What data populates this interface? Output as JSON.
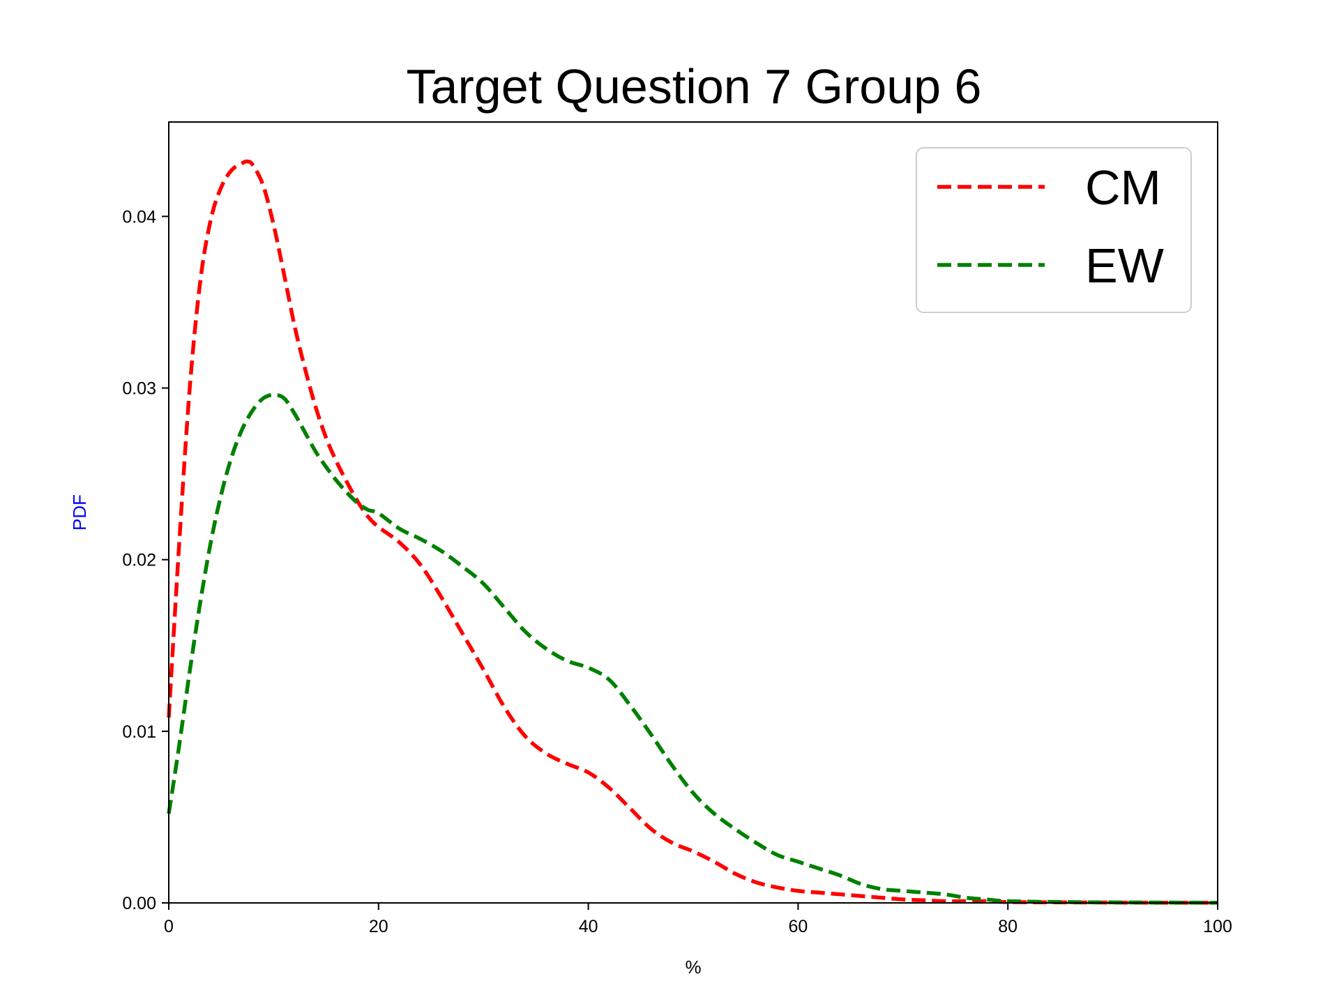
{
  "chart_data": {
    "type": "line",
    "title": "Target Question 7 Group 6",
    "xlabel": "%",
    "ylabel": "PDF",
    "ylabel_color": "#0000ff",
    "xlim": [
      0,
      100
    ],
    "ylim": [
      0,
      0.0455
    ],
    "xticks": [
      0,
      20,
      40,
      60,
      80,
      100
    ],
    "xtick_labels": [
      "0",
      "20",
      "40",
      "60",
      "80",
      "100"
    ],
    "yticks": [
      0,
      0.01,
      0.02,
      0.03,
      0.04
    ],
    "ytick_labels": [
      "0.00",
      "0.01",
      "0.02",
      "0.03",
      "0.04"
    ],
    "grid": false,
    "legend_position": "top-right",
    "series": [
      {
        "name": "CM",
        "color": "#ff0000",
        "line_style": "dashed",
        "x": [
          0,
          1,
          2,
          3,
          4,
          5,
          6,
          7,
          7.5,
          8,
          9,
          10,
          11,
          12,
          13,
          14,
          15,
          16,
          17,
          18,
          19,
          20,
          22,
          24,
          26,
          28,
          30,
          32,
          34,
          36,
          38,
          40,
          42,
          44,
          46,
          48,
          50,
          52,
          54,
          56,
          58,
          60,
          62,
          64,
          66,
          68,
          70,
          72,
          74,
          76,
          78,
          80,
          85,
          90,
          95,
          100
        ],
        "y": [
          0.0108,
          0.021,
          0.03,
          0.0362,
          0.0398,
          0.0417,
          0.0427,
          0.0431,
          0.0432,
          0.043,
          0.0418,
          0.0395,
          0.0366,
          0.0336,
          0.0311,
          0.0289,
          0.0271,
          0.0257,
          0.0245,
          0.0234,
          0.0225,
          0.0219,
          0.021,
          0.0197,
          0.0178,
          0.0157,
          0.0136,
          0.0114,
          0.0097,
          0.0087,
          0.0081,
          0.0076,
          0.0067,
          0.0055,
          0.0043,
          0.0035,
          0.003,
          0.0024,
          0.0017,
          0.0012,
          0.0009,
          0.0007,
          0.0006,
          0.0005,
          0.0004,
          0.0003,
          0.0002,
          0.00015,
          0.0001,
          0.0001,
          0.0001,
          5e-05,
          3e-05,
          2e-05,
          1e-05,
          1e-05
        ]
      },
      {
        "name": "EW",
        "color": "#008000",
        "line_style": "dashed",
        "x": [
          0,
          1,
          2,
          3,
          4,
          5,
          6,
          7,
          8,
          9,
          10,
          11,
          12,
          13,
          14,
          15,
          16,
          17,
          18,
          19,
          20,
          22,
          24,
          26,
          28,
          30,
          32,
          34,
          36,
          38,
          40,
          42,
          44,
          46,
          48,
          50,
          52,
          54,
          56,
          58,
          60,
          62,
          64,
          66,
          68,
          70,
          72,
          74,
          76,
          78,
          80,
          85,
          90,
          95,
          100
        ],
        "y": [
          0.0052,
          0.0092,
          0.0135,
          0.0175,
          0.021,
          0.0238,
          0.026,
          0.0276,
          0.0287,
          0.0294,
          0.0296,
          0.0294,
          0.0285,
          0.0274,
          0.0263,
          0.0254,
          0.0246,
          0.0239,
          0.0233,
          0.0229,
          0.0227,
          0.0218,
          0.0212,
          0.0205,
          0.0196,
          0.0186,
          0.0172,
          0.0158,
          0.0148,
          0.0141,
          0.0137,
          0.013,
          0.0115,
          0.0098,
          0.008,
          0.0064,
          0.0052,
          0.0043,
          0.0035,
          0.0028,
          0.0024,
          0.002,
          0.0016,
          0.0011,
          0.0008,
          0.0007,
          0.0006,
          0.0005,
          0.0003,
          0.0002,
          0.0001,
          5e-05,
          3e-05,
          2e-05,
          1e-05
        ]
      }
    ]
  }
}
